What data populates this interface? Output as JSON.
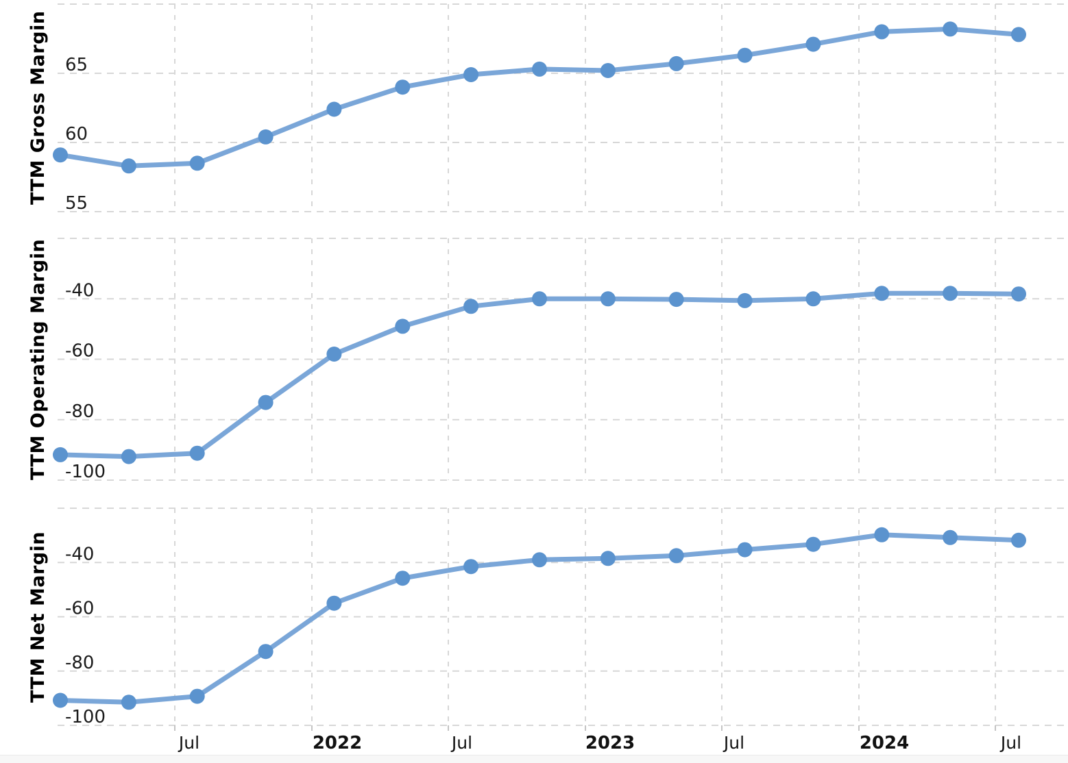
{
  "colors": {
    "line": "#7aa6d8",
    "marker": "#5b93ce",
    "grid": "#d7d7d7",
    "tick": "#c4c4c4",
    "axis_label": "#1b1b1b",
    "axis_title": "#000000",
    "footer_strip": "#f7f7f7"
  },
  "x_axis": {
    "tick_labels": [
      {
        "label": "Jul",
        "bold": false
      },
      {
        "label": "2022",
        "bold": true
      },
      {
        "label": "Jul",
        "bold": false
      },
      {
        "label": "2023",
        "bold": true
      },
      {
        "label": "Jul",
        "bold": false
      },
      {
        "label": "2024",
        "bold": true
      },
      {
        "label": "Jul",
        "bold": false
      }
    ]
  },
  "chart_data": [
    {
      "type": "line",
      "ylabel": "TTM Gross Margin",
      "ylim": [
        55,
        70
      ],
      "y_tick_values": [
        65,
        60,
        55
      ],
      "grid": "dashed",
      "legend": "none",
      "values": [
        59.1,
        58.3,
        58.5,
        60.4,
        62.4,
        64.0,
        64.9,
        65.3,
        65.2,
        65.7,
        66.3,
        67.1,
        68.0,
        68.2,
        67.8
      ]
    },
    {
      "type": "line",
      "ylabel": "TTM Operating Margin",
      "ylim": [
        -100,
        -20
      ],
      "y_tick_values": [
        -40,
        -60,
        -80,
        -100
      ],
      "grid": "dashed",
      "legend": "none",
      "values": [
        -91.6,
        -92.2,
        -91.1,
        -74.3,
        -58.3,
        -49.1,
        -42.5,
        -40.0,
        -40.0,
        -40.2,
        -40.6,
        -40.0,
        -38.2,
        -38.2,
        -38.4
      ]
    },
    {
      "type": "line",
      "ylabel": "TTM Net Margin",
      "ylim": [
        -100,
        -20
      ],
      "y_tick_values": [
        -40,
        -60,
        -80,
        -100
      ],
      "grid": "dashed",
      "legend": "none",
      "values": [
        -90.8,
        -91.5,
        -89.3,
        -72.8,
        -55.0,
        -45.8,
        -41.5,
        -39.0,
        -38.5,
        -37.5,
        -35.3,
        -33.3,
        -29.8,
        -30.8,
        -31.8
      ]
    }
  ]
}
